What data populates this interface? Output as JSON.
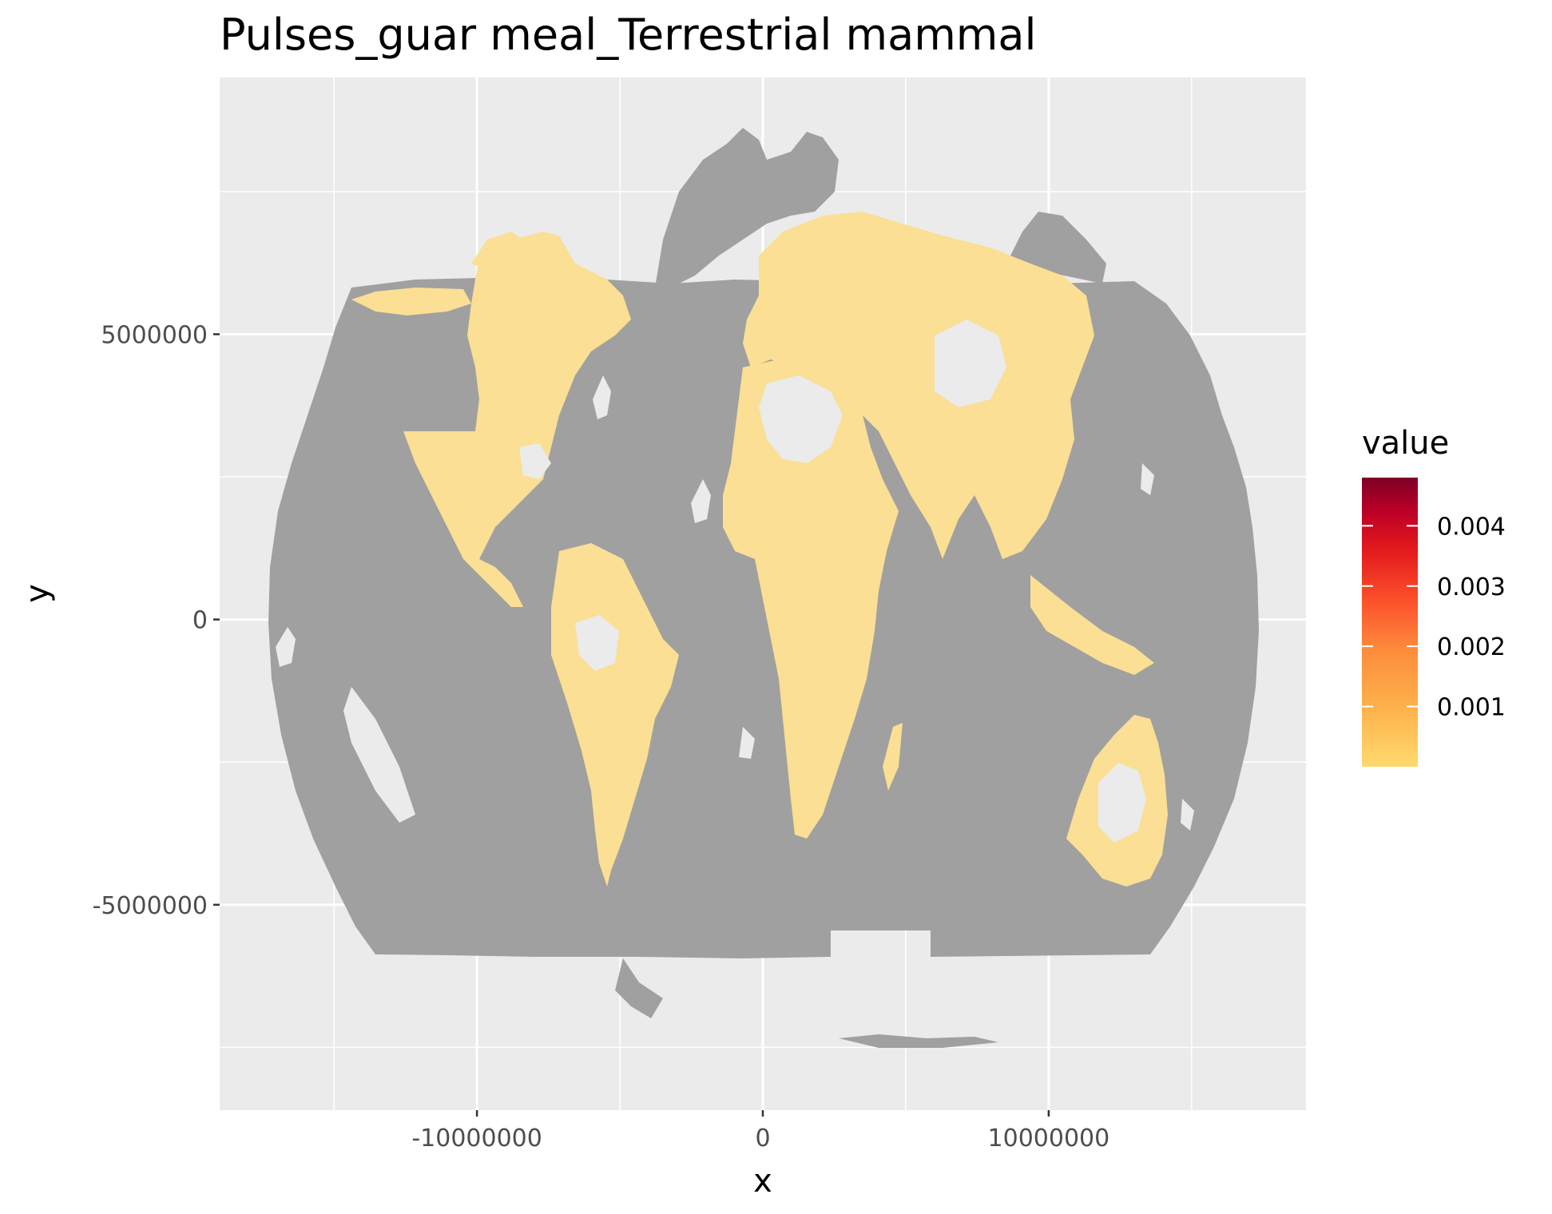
{
  "chart_data": {
    "type": "map",
    "title": "Pulses_guar meal_Terrestrial mammal",
    "xlabel": "x",
    "ylabel": "y",
    "xlim": [
      -19000000,
      19000000
    ],
    "ylim": [
      -8600000,
      9500000
    ],
    "x_ticks": [
      -10000000,
      0,
      10000000
    ],
    "x_tick_labels": [
      "-10000000",
      "0",
      "10000000"
    ],
    "y_ticks": [
      5000000,
      0,
      -5000000
    ],
    "y_tick_labels": [
      "5000000",
      "0",
      "-5000000"
    ],
    "x_minor": [
      -15000000,
      -5000000,
      5000000,
      15000000
    ],
    "y_minor": [
      7500000,
      2500000,
      -2500000,
      -7500000
    ],
    "legend": {
      "title": "value",
      "min": 0,
      "max": 0.0048,
      "ticks": [
        0.001,
        0.002,
        0.003,
        0.004
      ],
      "tick_labels": [
        "0.001",
        "0.002",
        "0.003",
        "0.004"
      ],
      "colors": [
        "#ffd96e",
        "#feb24c",
        "#fd8d3c",
        "#fc4e2a",
        "#e31a1c",
        "#bd0026",
        "#800026"
      ]
    },
    "colors": {
      "panel_background": "#ebebeb",
      "grid": "#ffffff",
      "ocean_mask": "#a0a0a0",
      "land_value_fill": "#fadf94",
      "no_data_land": "#ebebeb"
    }
  }
}
